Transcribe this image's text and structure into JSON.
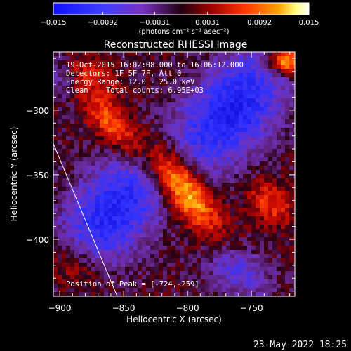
{
  "colors": {
    "background": "#000000",
    "text": "#ffffff",
    "colormap_negative": [
      "#000080",
      "#0000ff",
      "#4040ff",
      "#8040c0",
      "#602070"
    ],
    "colormap_positive": [
      "#400010",
      "#a00000",
      "#ff3000",
      "#ff9000",
      "#ffff80",
      "#ffffff"
    ]
  },
  "colorbar": {
    "tick_labels": [
      "-0.015",
      "-0.0092",
      "-0.0031",
      "0.0031",
      "0.0092",
      "0.015"
    ],
    "range": [
      -0.015,
      0.015
    ],
    "unit_label": "(photons cm⁻² s⁻¹ asec⁻²)"
  },
  "chart_data": {
    "type": "heatmap",
    "title": "Reconstructed RHESSI Image",
    "xlabel": "Heliocentric X (arcsec)",
    "ylabel": "Heliocentric Y (arcsec)",
    "xlim": [
      -905,
      -716
    ],
    "ylim": [
      -444,
      -255
    ],
    "x_ticks": [
      -900,
      -850,
      -800,
      -750
    ],
    "y_ticks": [
      -300,
      -350,
      -400
    ],
    "x_tick_labels": [
      "−900",
      "−850",
      "−800",
      "−750"
    ],
    "y_tick_labels": [
      "−300",
      "−350",
      "−400"
    ],
    "annotations": [
      "19-Oct-2015 16:02:08.000 to 16:06:12.000",
      "Detectors: 1F 5F 7F, Att 0",
      "Energy Range: 12.0 - 25.0 keV",
      "Clean    Total counts: 6.95E+03"
    ],
    "peak_label": "Position of Peak = [-724,-259]",
    "peak_position": [
      -724,
      -259
    ],
    "limb_line": [
      [
        -905,
        -326
      ],
      [
        -855,
        -444
      ]
    ],
    "sources": [
      {
        "x": -805,
        "y": -358,
        "sx": 28,
        "sy": 11,
        "angle": -52,
        "amp": 1.0
      },
      {
        "x": -860,
        "y": -310,
        "sx": 22,
        "sy": 9,
        "angle": -52,
        "amp": 0.55
      },
      {
        "x": -722,
        "y": -262,
        "sx": 10,
        "sy": 7,
        "angle": 0,
        "amp": 0.95
      },
      {
        "x": -735,
        "y": -372,
        "sx": 14,
        "sy": 10,
        "angle": -40,
        "amp": 0.45
      },
      {
        "x": -890,
        "y": -420,
        "sx": 18,
        "sy": 14,
        "angle": -30,
        "amp": 0.45
      },
      {
        "x": -880,
        "y": -270,
        "sx": 18,
        "sy": 8,
        "angle": -20,
        "amp": 0.35
      }
    ],
    "negative_lobes": [
      {
        "x": -860,
        "y": -380,
        "sx": 22,
        "sy": 40,
        "angle": -40,
        "amp": 0.75
      },
      {
        "x": -765,
        "y": -300,
        "sx": 22,
        "sy": 38,
        "angle": -40,
        "amp": 0.8
      },
      {
        "x": -760,
        "y": -425,
        "sx": 18,
        "sy": 12,
        "angle": -30,
        "amp": 0.45
      },
      {
        "x": -900,
        "y": -270,
        "sx": 10,
        "sy": 12,
        "angle": 0,
        "amp": 0.35
      }
    ]
  },
  "footer": {
    "date": "23-May-2022 18:25"
  }
}
